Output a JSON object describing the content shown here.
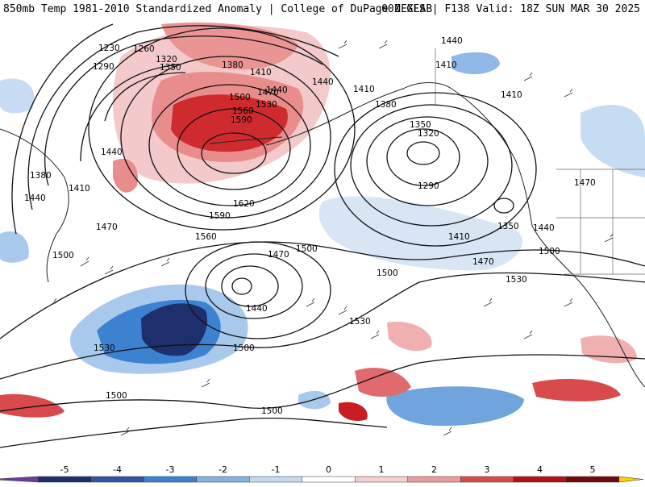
{
  "header": {
    "title_left": "850mb Temp 1981-2010 Standardized Anomaly | College of DuPage NEXLAB",
    "title_right": "00Z GFS | F138 Valid: 18Z SUN MAR 30 2025"
  },
  "map": {
    "field": "850mb temperature standardized anomaly",
    "overlay": "850mb geopotential height contours with wind barbs",
    "colors": {
      "strong_cold": "#1e2f6e",
      "cold": "#2f6fc4",
      "cool": "#8fb8e6",
      "slight_cool": "#d4e3f4",
      "slight_warm": "#f6d4d4",
      "warm": "#ea8f8f",
      "strong_warm": "#c81e23",
      "extreme_warm": "#7e0b0e"
    },
    "contour_labels": [
      {
        "id": "c1230",
        "text": "1230"
      },
      {
        "id": "c1260",
        "text": "1260"
      },
      {
        "id": "c1320a",
        "text": "1320"
      },
      {
        "id": "c1290a",
        "text": "1290"
      },
      {
        "id": "c1350a",
        "text": "1350"
      },
      {
        "id": "c1380a",
        "text": "1380"
      },
      {
        "id": "c1410a",
        "text": "1410"
      },
      {
        "id": "c1440a",
        "text": "1440"
      },
      {
        "id": "c1440b",
        "text": "1440"
      },
      {
        "id": "c1410b",
        "text": "1410"
      },
      {
        "id": "c1440c",
        "text": "1440"
      },
      {
        "id": "c1410c",
        "text": "1410"
      },
      {
        "id": "c1380b",
        "text": "1380"
      },
      {
        "id": "c1410d",
        "text": "1410"
      },
      {
        "id": "c1500a",
        "text": "1500"
      },
      {
        "id": "c1470a",
        "text": "1470"
      },
      {
        "id": "c1530a",
        "text": "1530"
      },
      {
        "id": "c1560a",
        "text": "1560"
      },
      {
        "id": "c1590a",
        "text": "1590"
      },
      {
        "id": "c1440d",
        "text": "1440"
      },
      {
        "id": "c1380c",
        "text": "1380"
      },
      {
        "id": "c1410e",
        "text": "1410"
      },
      {
        "id": "c1440e",
        "text": "1440"
      },
      {
        "id": "c1350b",
        "text": "1350"
      },
      {
        "id": "c1320b",
        "text": "1320"
      },
      {
        "id": "c1290b",
        "text": "1290"
      },
      {
        "id": "c1620",
        "text": "1620"
      },
      {
        "id": "c1590b",
        "text": "1590"
      },
      {
        "id": "c1560b",
        "text": "1560"
      },
      {
        "id": "c1470b",
        "text": "1470"
      },
      {
        "id": "c1500b",
        "text": "1500"
      },
      {
        "id": "c1470c",
        "text": "1470"
      },
      {
        "id": "c1500c",
        "text": "1500"
      },
      {
        "id": "c1410f",
        "text": "1410"
      },
      {
        "id": "c1470d",
        "text": "1470"
      },
      {
        "id": "c1500d",
        "text": "1500"
      },
      {
        "id": "c1470e",
        "text": "1470"
      },
      {
        "id": "c1350c",
        "text": "1350"
      },
      {
        "id": "c1440f",
        "text": "1440"
      },
      {
        "id": "c1500e",
        "text": "1500"
      },
      {
        "id": "c1440g",
        "text": "1440"
      },
      {
        "id": "c1530b",
        "text": "1530"
      },
      {
        "id": "c1530c",
        "text": "1530"
      },
      {
        "id": "c1500f",
        "text": "1500"
      },
      {
        "id": "c1530d",
        "text": "1530"
      },
      {
        "id": "c1500g",
        "text": "1500"
      },
      {
        "id": "c1500h",
        "text": "1500"
      }
    ]
  },
  "legend": {
    "ticks": [
      "-5",
      "-4",
      "-3",
      "-2",
      "-1",
      "0",
      "1",
      "2",
      "3",
      "4",
      "5"
    ],
    "colors": [
      "#6a3d9a",
      "#1e2f6e",
      "#2f55a4",
      "#3d82d0",
      "#82b2e2",
      "#c4daf1",
      "#ffffff",
      "#f6d0d0",
      "#ec9a9a",
      "#d94a4d",
      "#b31218",
      "#6e0b0e",
      "#ffcc00"
    ]
  }
}
